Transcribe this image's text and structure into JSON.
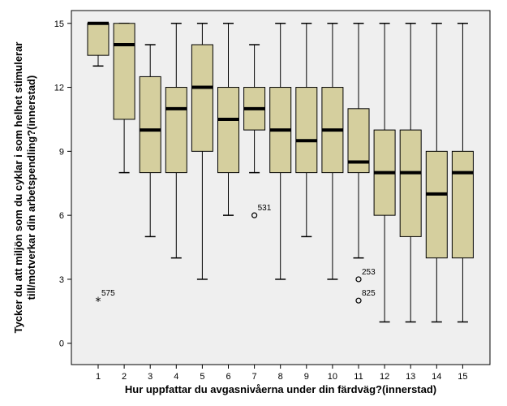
{
  "chart_data": {
    "type": "boxplot",
    "xlabel": "Hur uppfattar du avgasnivåerna under din färdväg?(innerstad)",
    "ylabel_lines": [
      "Tycker du att miljön som du cyklar i som helhet stimulerar",
      "till/motverkar din arbetspendling?(innerstad)"
    ],
    "categories": [
      "1",
      "2",
      "3",
      "4",
      "5",
      "6",
      "7",
      "8",
      "9",
      "10",
      "11",
      "12",
      "13",
      "14",
      "15"
    ],
    "ylim": [
      -1,
      15.6
    ],
    "yticks": [
      0,
      3,
      6,
      9,
      12,
      15
    ],
    "colors": {
      "box_fill": "#D5CF9E",
      "plot_bg": "#EFEFEF"
    },
    "boxes": [
      {
        "category": "1",
        "whisker_low": 13,
        "q1": 13.5,
        "median": 15,
        "q3": 15,
        "whisker_high": 15
      },
      {
        "category": "2",
        "whisker_low": 8,
        "q1": 10.5,
        "median": 14,
        "q3": 15,
        "whisker_high": 15
      },
      {
        "category": "3",
        "whisker_low": 5,
        "q1": 8,
        "median": 10,
        "q3": 12.5,
        "whisker_high": 14
      },
      {
        "category": "4",
        "whisker_low": 4,
        "q1": 8,
        "median": 11,
        "q3": 12,
        "whisker_high": 15
      },
      {
        "category": "5",
        "whisker_low": 3,
        "q1": 9,
        "median": 12,
        "q3": 14,
        "whisker_high": 15
      },
      {
        "category": "6",
        "whisker_low": 6,
        "q1": 8,
        "median": 10.5,
        "q3": 12,
        "whisker_high": 15
      },
      {
        "category": "7",
        "whisker_low": 8,
        "q1": 10,
        "median": 11,
        "q3": 12,
        "whisker_high": 14
      },
      {
        "category": "8",
        "whisker_low": 3,
        "q1": 8,
        "median": 10,
        "q3": 12,
        "whisker_high": 15
      },
      {
        "category": "9",
        "whisker_low": 5,
        "q1": 8,
        "median": 9.5,
        "q3": 12,
        "whisker_high": 15
      },
      {
        "category": "10",
        "whisker_low": 3,
        "q1": 8,
        "median": 10,
        "q3": 12,
        "whisker_high": 15
      },
      {
        "category": "11",
        "whisker_low": 4,
        "q1": 8,
        "median": 8.5,
        "q3": 11,
        "whisker_high": 15
      },
      {
        "category": "12",
        "whisker_low": 1,
        "q1": 6,
        "median": 8,
        "q3": 10,
        "whisker_high": 15
      },
      {
        "category": "13",
        "whisker_low": 1,
        "q1": 5,
        "median": 8,
        "q3": 10,
        "whisker_high": 15
      },
      {
        "category": "14",
        "whisker_low": 1,
        "q1": 4,
        "median": 7,
        "q3": 9,
        "whisker_high": 15
      },
      {
        "category": "15",
        "whisker_low": 1,
        "q1": 4,
        "median": 8,
        "q3": 9,
        "whisker_high": 15
      }
    ],
    "outliers": [
      {
        "category": "1",
        "value": 2,
        "marker": "star",
        "label": "575"
      },
      {
        "category": "7",
        "value": 6,
        "marker": "circle",
        "label": "531"
      },
      {
        "category": "11",
        "value": 3,
        "marker": "circle",
        "label": "253"
      },
      {
        "category": "11",
        "value": 2,
        "marker": "circle",
        "label": "825"
      }
    ]
  }
}
